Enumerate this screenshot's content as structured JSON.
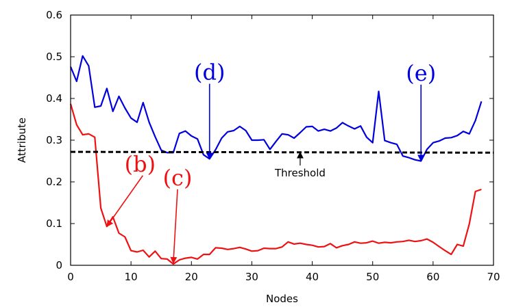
{
  "chart_data": {
    "type": "line",
    "title": "",
    "xlabel": "Nodes",
    "ylabel": "Attribute",
    "xlim": [
      0,
      70
    ],
    "ylim": [
      0,
      0.6
    ],
    "xticks": [
      0,
      10,
      20,
      30,
      40,
      50,
      60,
      70
    ],
    "yticks": [
      0,
      0.1,
      0.2,
      0.3,
      0.4,
      0.5,
      0.6
    ],
    "xtick_labels": [
      "0",
      "10",
      "20",
      "30",
      "40",
      "50",
      "60",
      "70"
    ],
    "ytick_labels": [
      "0",
      "0.1",
      "0.2",
      "0.3",
      "0.4",
      "0.5",
      "0.6"
    ],
    "grid": false,
    "legend": "none",
    "series": [
      {
        "name": "blue",
        "color": "#0000dd",
        "x": [
          0,
          1,
          2,
          3,
          4,
          5,
          6,
          7,
          8,
          9,
          10,
          11,
          12,
          13,
          14,
          15,
          16,
          17,
          18,
          19,
          20,
          21,
          22,
          23,
          24,
          25,
          26,
          27,
          28,
          29,
          30,
          31,
          32,
          33,
          34,
          35,
          36,
          37,
          38,
          39,
          40,
          41,
          42,
          43,
          44,
          45,
          46,
          47,
          48,
          49,
          50,
          51,
          52,
          53,
          54,
          55,
          56,
          57,
          58,
          59,
          60,
          61,
          62,
          63,
          64,
          65,
          66,
          67,
          68
        ],
        "values": [
          0.476,
          0.441,
          0.502,
          0.478,
          0.379,
          0.382,
          0.424,
          0.369,
          0.405,
          0.377,
          0.353,
          0.343,
          0.39,
          0.343,
          0.308,
          0.276,
          0.27,
          0.27,
          0.316,
          0.322,
          0.31,
          0.303,
          0.265,
          0.255,
          0.277,
          0.305,
          0.32,
          0.323,
          0.333,
          0.323,
          0.3,
          0.3,
          0.301,
          0.278,
          0.297,
          0.315,
          0.313,
          0.305,
          0.318,
          0.332,
          0.333,
          0.322,
          0.326,
          0.322,
          0.329,
          0.342,
          0.334,
          0.327,
          0.334,
          0.307,
          0.294,
          0.417,
          0.299,
          0.294,
          0.29,
          0.262,
          0.258,
          0.253,
          0.25,
          0.278,
          0.294,
          0.298,
          0.305,
          0.306,
          0.311,
          0.321,
          0.315,
          0.347,
          0.393
        ]
      },
      {
        "name": "red",
        "color": "#ee1111",
        "x": [
          0,
          1,
          2,
          3,
          4,
          5,
          6,
          7,
          8,
          9,
          10,
          11,
          12,
          13,
          14,
          15,
          16,
          17,
          18,
          19,
          20,
          21,
          22,
          23,
          24,
          25,
          26,
          27,
          28,
          29,
          30,
          31,
          32,
          33,
          34,
          35,
          36,
          37,
          38,
          39,
          40,
          41,
          42,
          43,
          44,
          45,
          46,
          47,
          48,
          49,
          50,
          51,
          52,
          53,
          54,
          55,
          56,
          57,
          58,
          59,
          60,
          61,
          62,
          63,
          64,
          65,
          66,
          67,
          68
        ],
        "values": [
          0.387,
          0.337,
          0.313,
          0.315,
          0.307,
          0.137,
          0.093,
          0.116,
          0.077,
          0.068,
          0.035,
          0.032,
          0.036,
          0.02,
          0.034,
          0.016,
          0.015,
          0.003,
          0.013,
          0.017,
          0.019,
          0.015,
          0.026,
          0.026,
          0.042,
          0.041,
          0.038,
          0.04,
          0.043,
          0.039,
          0.034,
          0.035,
          0.041,
          0.04,
          0.04,
          0.044,
          0.056,
          0.051,
          0.053,
          0.05,
          0.048,
          0.044,
          0.045,
          0.052,
          0.042,
          0.047,
          0.05,
          0.056,
          0.053,
          0.054,
          0.058,
          0.053,
          0.055,
          0.054,
          0.056,
          0.057,
          0.06,
          0.057,
          0.059,
          0.063,
          0.055,
          0.045,
          0.035,
          0.026,
          0.05,
          0.046,
          0.099,
          0.177,
          0.182
        ]
      },
      {
        "name": "Threshold",
        "color": "#000000",
        "style": "dashed",
        "x": [
          0,
          70
        ],
        "values": [
          0.272,
          0.27
        ]
      }
    ],
    "annotations": [
      {
        "text": "(b)",
        "color": "#ee1111",
        "at": [
          6,
          0.093
        ],
        "label_at": [
          11.5,
          0.225
        ]
      },
      {
        "text": "(c)",
        "color": "#ee1111",
        "at": [
          17,
          0.005
        ],
        "label_at": [
          17.7,
          0.192
        ]
      },
      {
        "text": "(d)",
        "color": "#0000dd",
        "at": [
          23,
          0.255
        ],
        "label_at": [
          23,
          0.445
        ]
      },
      {
        "text": "(e)",
        "color": "#0000dd",
        "at": [
          58,
          0.25
        ],
        "label_at": [
          58,
          0.443
        ]
      },
      {
        "text": "Threshold",
        "color": "#000000",
        "at": [
          38,
          0.271
        ],
        "label_at": [
          38,
          0.213
        ]
      }
    ]
  }
}
